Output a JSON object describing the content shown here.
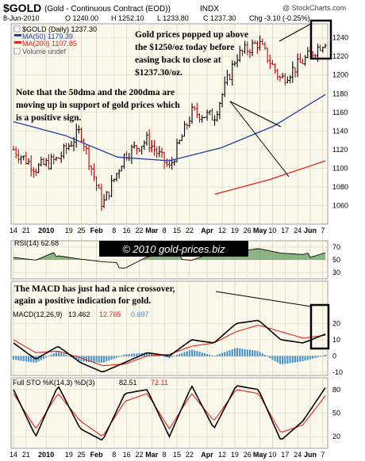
{
  "header": {
    "symbol": "$GOLD",
    "name": "(Gold - Continuous Contract (EOD))",
    "exchange": "INDX",
    "watermark": "@ StockCharts.com",
    "ohlc_line": {
      "date": "8-Jun-2010",
      "open": "O 1240.00",
      "high": "H 1252.10",
      "low": "L 1233.80",
      "close": "C 1237.30",
      "change": "Chg -3.10 (-0.25%)"
    }
  },
  "legend": {
    "price": "$GOLD (Daily) 1237.30",
    "ma50": "MA(50) 1179.39",
    "ma200": "MA(200) 1107.85",
    "volume": "Volume undef"
  },
  "colors": {
    "up_bar": "#000000",
    "down_bar": "#cc0000",
    "ma50": "#1f3fa0",
    "ma200": "#e8231b",
    "background": "#fbf8ec",
    "grid": "#d7d2b8",
    "rsi_fill": "#2e7d32",
    "macd_hist": "#3f8fcf",
    "callout_box": "#000000"
  },
  "annotations": {
    "gold_note": [
      "Gold prices popped up above",
      "the $1250/oz today before",
      "easing back to close at",
      "$1237.30/oz."
    ],
    "ma_note": [
      "Note that the 50dma and the 200dma are",
      "moving up in support of gold prices which",
      "is a positive sign."
    ],
    "copyright": "© 2010 gold-prices.biz",
    "macd_note": [
      "The MACD has just had a nice crossover,",
      "again a positive indication for gold."
    ]
  },
  "indicators": {
    "rsi": "RSI(14) 62.68",
    "macd_label": "MACD(12,26,9)",
    "macd_value": "13.462",
    "macd_signal": "12.765",
    "macd_hist": "0.697",
    "sto_label": "Full STO %K(14,3) %D(3)",
    "sto_k": "82.51",
    "sto_d": "72.11"
  },
  "x_axis_labels": [
    "14",
    "21",
    "2010",
    "19",
    "25",
    "Feb",
    "8",
    "16",
    "22",
    "Mar",
    "8",
    "15",
    "22",
    "Apr",
    "12",
    "19",
    "26",
    "May",
    "10",
    "17",
    "24",
    "Jun",
    "7"
  ],
  "chart_data": [
    {
      "type": "line",
      "title": "$GOLD (Daily) 1237.30",
      "x_range": [
        "Dec 14 2009",
        "Jun 8 2010"
      ],
      "ylim": [
        1040,
        1255
      ],
      "yticks": [
        1060,
        1080,
        1100,
        1120,
        1140,
        1160,
        1180,
        1200,
        1220,
        1240
      ],
      "series": [
        {
          "name": "$GOLD (Daily) 1237.30",
          "x": [
            "Dec 14",
            "Dec 21",
            "Jan 1",
            "Jan 19",
            "Feb 8",
            "Feb 22",
            "Mar 8",
            "Mar 22",
            "Apr 12",
            "Apr 26",
            "May 10",
            "May 17",
            "May 24",
            "Jun 1",
            "Jun 8"
          ],
          "values": [
            1120,
            1100,
            1110,
            1140,
            1060,
            1115,
            1130,
            1100,
            1160,
            1155,
            1220,
            1235,
            1195,
            1215,
            1237
          ]
        },
        {
          "name": "MA(50) 1179.39",
          "x": [
            "Dec 14",
            "Jan 19",
            "Feb 8",
            "Mar 8",
            "Apr 12",
            "May 10",
            "Jun 8"
          ],
          "values": [
            1150,
            1135,
            1112,
            1108,
            1122,
            1145,
            1179
          ]
        },
        {
          "name": "MA(200) 1107.85",
          "x": [
            "Apr 12",
            "May 10",
            "Jun 8"
          ],
          "values": [
            1072,
            1088,
            1108
          ]
        }
      ]
    },
    {
      "type": "line",
      "title": "RSI(14) 62.68",
      "ylim": [
        20,
        80
      ],
      "yticks": [
        30,
        50,
        70
      ],
      "series": [
        {
          "name": "RSI(14) 62.68",
          "values": [
            55,
            48,
            60,
            52,
            45,
            40,
            55,
            58,
            52,
            62,
            68,
            70,
            60,
            55,
            63
          ]
        }
      ]
    },
    {
      "type": "line",
      "title": "MACD(12,26,9) 13.462, 12.765, 0.697",
      "ylim": [
        -12,
        28
      ],
      "yticks": [
        -10,
        0,
        10,
        20
      ],
      "series": [
        {
          "name": "MACD 13.462",
          "values": [
            8,
            -2,
            6,
            -4,
            -10,
            -4,
            2,
            0,
            10,
            8,
            20,
            22,
            10,
            8,
            13.462
          ]
        },
        {
          "name": "Signal 12.765",
          "values": [
            10,
            2,
            3,
            -1,
            -6,
            -5,
            0,
            1,
            6,
            8,
            15,
            19,
            15,
            11,
            12.765
          ]
        },
        {
          "name": "Histogram 0.697",
          "values": [
            -2,
            -4,
            3,
            -3,
            -4,
            1,
            2,
            -1,
            4,
            0,
            5,
            3,
            -5,
            -3,
            0.697
          ]
        }
      ]
    },
    {
      "type": "line",
      "title": "Full STO %K(14,3) %D(3) 82.51, 72.11",
      "ylim": [
        5,
        95
      ],
      "yticks": [
        20,
        50,
        80
      ],
      "series": [
        {
          "name": "%K 82.51",
          "values": [
            80,
            20,
            85,
            30,
            15,
            75,
            80,
            20,
            85,
            30,
            85,
            80,
            15,
            40,
            82.51
          ]
        },
        {
          "name": "%D 72.11",
          "values": [
            75,
            30,
            75,
            40,
            20,
            65,
            75,
            30,
            75,
            40,
            80,
            75,
            25,
            35,
            72.11
          ]
        }
      ]
    }
  ]
}
